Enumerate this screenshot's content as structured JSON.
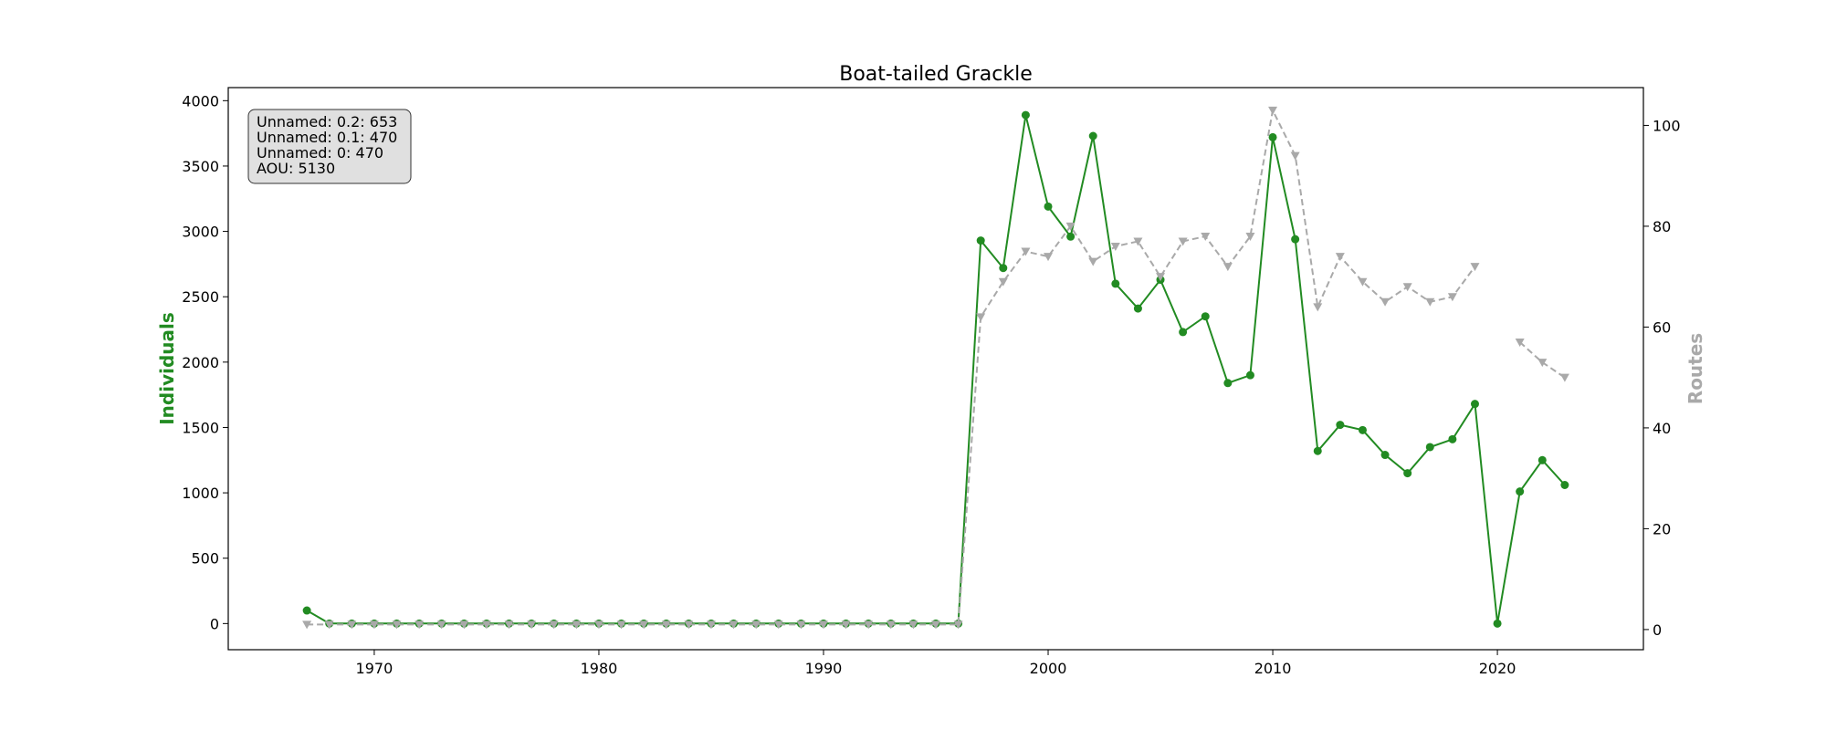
{
  "chart_data": {
    "type": "line",
    "title": "Boat-tailed Grackle",
    "xlabel": "",
    "ylabel": "Individuals",
    "y2label": "Routes",
    "xlim": [
      1963.5,
      2026.5
    ],
    "ylim": [
      -200,
      4100
    ],
    "y2lim": [
      -4,
      107.5
    ],
    "xticks": [
      1970,
      1980,
      1990,
      2000,
      2010,
      2020
    ],
    "yticks": [
      0,
      500,
      1000,
      1500,
      2000,
      2500,
      3000,
      3500,
      4000
    ],
    "y2ticks": [
      0,
      20,
      40,
      60,
      80,
      100
    ],
    "grid": false,
    "colors": {
      "individuals": "#228b22",
      "routes": "#a9a9a9",
      "info_bg": "#e0e0e0"
    },
    "info_box": [
      "Unnamed: 0.2: 653",
      "Unnamed: 0.1: 470",
      "Unnamed: 0: 470",
      "AOU: 5130"
    ],
    "x": [
      1967,
      1968,
      1969,
      1970,
      1971,
      1972,
      1973,
      1974,
      1975,
      1976,
      1977,
      1978,
      1979,
      1980,
      1981,
      1982,
      1983,
      1984,
      1985,
      1986,
      1987,
      1988,
      1989,
      1990,
      1991,
      1992,
      1993,
      1994,
      1995,
      1996,
      1997,
      1998,
      1999,
      2000,
      2001,
      2002,
      2003,
      2004,
      2005,
      2006,
      2007,
      2008,
      2009,
      2010,
      2011,
      2012,
      2013,
      2014,
      2015,
      2016,
      2017,
      2018,
      2019,
      2020,
      2021,
      2022,
      2023
    ],
    "series": [
      {
        "name": "Individuals",
        "axis": "left",
        "style": "solid",
        "marker": "circle",
        "values": [
          100,
          0,
          0,
          0,
          0,
          0,
          0,
          0,
          0,
          0,
          0,
          0,
          0,
          0,
          0,
          0,
          0,
          0,
          0,
          0,
          0,
          0,
          0,
          0,
          0,
          0,
          0,
          0,
          0,
          0,
          2930,
          2720,
          3890,
          3190,
          2960,
          3730,
          2600,
          2410,
          2630,
          2230,
          2350,
          1840,
          1900,
          3720,
          2940,
          1320,
          1520,
          1480,
          1290,
          1150,
          1350,
          1410,
          1680,
          0,
          1010,
          1250,
          1060
        ]
      },
      {
        "name": "Routes",
        "axis": "right",
        "style": "dashed",
        "marker": "triangle-down",
        "values": [
          1,
          1,
          1,
          1,
          1,
          1,
          1,
          1,
          1,
          1,
          1,
          1,
          1,
          1,
          1,
          1,
          1,
          1,
          1,
          1,
          1,
          1,
          1,
          1,
          1,
          1,
          1,
          1,
          1,
          1,
          62,
          69,
          75,
          74,
          80,
          73,
          76,
          77,
          70,
          77,
          78,
          72,
          78,
          103,
          94,
          64,
          74,
          69,
          65,
          68,
          65,
          66,
          72,
          null,
          57,
          53,
          50
        ]
      }
    ]
  }
}
